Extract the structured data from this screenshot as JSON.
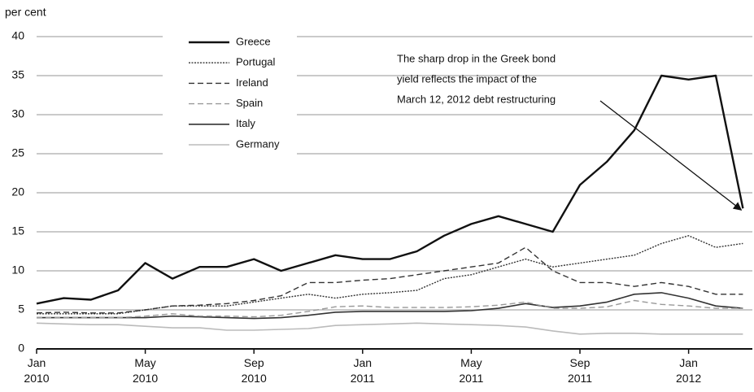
{
  "chart_data": {
    "type": "line",
    "y_label": "per cent",
    "categories": [
      "Jan 2010",
      null,
      null,
      null,
      "May 2010",
      null,
      null,
      null,
      "Sep 2010",
      null,
      null,
      null,
      "Jan 2011",
      null,
      null,
      null,
      "May 2011",
      null,
      null,
      null,
      "Sep 2011",
      null,
      null,
      null,
      "Jan 2012",
      null,
      null
    ],
    "series": [
      {
        "name": "Greece",
        "color": "#111111",
        "width": 2.4,
        "dash": "none",
        "values": [
          5.8,
          6.5,
          6.3,
          7.5,
          11,
          9,
          10.5,
          10.5,
          11.5,
          10,
          11,
          12,
          11.5,
          11.5,
          12.5,
          14.5,
          16,
          17,
          16,
          15,
          21,
          24,
          28,
          35,
          34.5,
          35,
          18
        ]
      },
      {
        "name": "Portugal",
        "color": "#333333",
        "width": 1.4,
        "dash": "2,1.5",
        "values": [
          4.5,
          4.5,
          4.5,
          4.5,
          5,
          5.5,
          5.5,
          5.5,
          6,
          6.5,
          7,
          6.5,
          7,
          7.2,
          7.5,
          9,
          9.5,
          10.5,
          11.5,
          10.5,
          11,
          11.5,
          12,
          13.5,
          14.5,
          13,
          13.5
        ]
      },
      {
        "name": "Ireland",
        "color": "#333333",
        "width": 1.4,
        "dash": "7,4",
        "values": [
          4.6,
          4.7,
          4.6,
          4.6,
          5,
          5.5,
          5.6,
          5.8,
          6.2,
          6.8,
          8.5,
          8.5,
          8.8,
          9,
          9.5,
          10,
          10.5,
          11,
          13,
          10,
          8.5,
          8.5,
          8,
          8.5,
          8,
          7,
          7
        ]
      },
      {
        "name": "Spain",
        "color": "#999999",
        "width": 1.4,
        "dash": "7,4",
        "values": [
          4,
          4,
          4,
          4,
          4.2,
          4.5,
          4.2,
          4.2,
          4.1,
          4.3,
          4.8,
          5.4,
          5.5,
          5.3,
          5.3,
          5.3,
          5.4,
          5.6,
          6,
          5.2,
          5.2,
          5.4,
          6.2,
          5.7,
          5.5,
          5.2,
          5.2
        ]
      },
      {
        "name": "Italy",
        "color": "#333333",
        "width": 1.6,
        "dash": "none",
        "values": [
          4,
          4,
          4,
          4,
          4,
          4.2,
          4.1,
          4,
          3.9,
          4,
          4.3,
          4.7,
          4.8,
          4.8,
          4.8,
          4.8,
          4.9,
          5.2,
          5.8,
          5.3,
          5.5,
          6,
          7,
          7.2,
          6.5,
          5.5,
          5.2
        ]
      },
      {
        "name": "Germany",
        "color": "#bbbbbb",
        "width": 1.6,
        "dash": "none",
        "values": [
          3.3,
          3.2,
          3.1,
          3.1,
          2.9,
          2.7,
          2.7,
          2.4,
          2.4,
          2.5,
          2.6,
          3,
          3.1,
          3.2,
          3.3,
          3.2,
          3.1,
          3,
          2.8,
          2.3,
          1.9,
          2,
          2,
          1.9,
          1.9,
          1.9,
          1.9
        ]
      }
    ],
    "annotation": [
      "The sharp drop in the Greek bond",
      "yield reflects the impact of the",
      "March 12, 2012 debt restructuring"
    ],
    "ylim": [
      0,
      40
    ],
    "yticks": [
      0,
      5,
      10,
      15,
      20,
      25,
      30,
      35,
      40
    ],
    "grid": true
  }
}
